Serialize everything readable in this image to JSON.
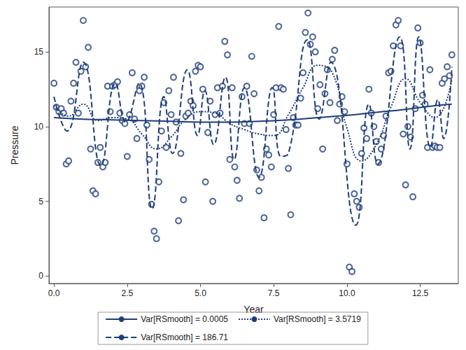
{
  "chart_data": {
    "type": "scatter",
    "x_label": "Year",
    "y_label": "Pressure",
    "xlim": [
      -0.17,
      13.8
    ],
    "ylim": [
      -0.5,
      18
    ],
    "xticks": [
      {
        "value": 0,
        "label": "0.0"
      },
      {
        "value": 2.5,
        "label": "2.5"
      },
      {
        "value": 5,
        "label": "5.0"
      },
      {
        "value": 7.5,
        "label": "7.5"
      },
      {
        "value": 10,
        "label": "10.0"
      },
      {
        "value": 12.5,
        "label": "12.5"
      }
    ],
    "yticks": [
      0,
      5,
      10,
      15
    ],
    "grid": false,
    "legend": "bottom",
    "series": [
      {
        "type": "scatter",
        "marker": "circle",
        "color": "#1f3d7a",
        "x": [
          0,
          0.08,
          0.17,
          0.25,
          0.33,
          0.42,
          0.5,
          0.58,
          0.67,
          0.75,
          0.83,
          0.92,
          1,
          1.08,
          1.17,
          1.25,
          1.33,
          1.42,
          1.5,
          1.58,
          1.67,
          1.75,
          1.83,
          1.92,
          2,
          2.08,
          2.17,
          2.25,
          2.33,
          2.42,
          2.5,
          2.58,
          2.67,
          2.75,
          2.83,
          2.92,
          3,
          3.08,
          3.17,
          3.25,
          3.33,
          3.42,
          3.5,
          3.58,
          3.67,
          3.75,
          3.83,
          3.92,
          4,
          4.08,
          4.17,
          4.25,
          4.33,
          4.42,
          4.5,
          4.58,
          4.67,
          4.75,
          4.83,
          4.92,
          5,
          5.08,
          5.17,
          5.25,
          5.33,
          5.42,
          5.5,
          5.58,
          5.67,
          5.75,
          5.83,
          5.92,
          6,
          6.08,
          6.17,
          6.25,
          6.33,
          6.42,
          6.5,
          6.58,
          6.67,
          6.75,
          6.83,
          6.92,
          7,
          7.08,
          7.17,
          7.25,
          7.33,
          7.42,
          7.5,
          7.58,
          7.67,
          7.75,
          7.83,
          7.92,
          8,
          8.08,
          8.17,
          8.25,
          8.33,
          8.42,
          8.5,
          8.58,
          8.67,
          8.75,
          8.83,
          8.92,
          9,
          9.08,
          9.17,
          9.25,
          9.33,
          9.42,
          9.5,
          9.58,
          9.67,
          9.75,
          9.83,
          9.92,
          10,
          10.08,
          10.17,
          10.25,
          10.33,
          10.42,
          10.5,
          10.58,
          10.67,
          10.75,
          10.83,
          10.92,
          11,
          11.08,
          11.17,
          11.25,
          11.33,
          11.42,
          11.5,
          11.58,
          11.67,
          11.75,
          11.83,
          11.92,
          12,
          12.08,
          12.17,
          12.25,
          12.33,
          12.42,
          12.5,
          12.58,
          12.67,
          12.75,
          12.83,
          12.92,
          13,
          13.08,
          13.17,
          13.25,
          13.33,
          13.42,
          13.5,
          13.58
        ],
        "values": [
          12.9,
          11.3,
          11.0,
          11.2,
          10.9,
          7.5,
          7.7,
          11.7,
          12.9,
          14.3,
          10.9,
          13.7,
          17.1,
          14.0,
          15.3,
          8.5,
          5.7,
          5.5,
          7.6,
          8.6,
          7.3,
          7.6,
          12.7,
          11.0,
          12.7,
          12.8,
          13.0,
          10.9,
          10.4,
          10.2,
          8.0,
          10.8,
          13.6,
          10.5,
          9.2,
          12.4,
          12.7,
          13.3,
          10.1,
          7.8,
          4.8,
          3.0,
          2.5,
          6.3,
          9.7,
          11.6,
          8.6,
          12.4,
          10.8,
          13.3,
          10.3,
          3.7,
          8.2,
          5.1,
          10.7,
          10.9,
          11.7,
          11.4,
          13.7,
          14.1,
          14.0,
          12.5,
          6.3,
          9.6,
          11.7,
          5.0,
          10.8,
          12.6,
          10.9,
          12.7,
          15.7,
          14.8,
          7.8,
          12.6,
          7.3,
          6.4,
          5.2,
          12.0,
          10.2,
          12.7,
          10.2,
          14.7,
          12.2,
          7.1,
          5.7,
          6.6,
          3.9,
          8.5,
          8.1,
          7.3,
          10.8,
          12.6,
          16.7,
          12.6,
          12.5,
          9.8,
          7.2,
          4.1,
          10.6,
          10.1,
          10.1,
          11.9,
          13.6,
          16.3,
          17.6,
          15.5,
          16.0,
          15.0,
          11.2,
          12.8,
          8.5,
          12.2,
          13.8,
          11.6,
          14.5,
          15.1,
          10.4,
          11.5,
          12.0,
          11.0,
          7.5,
          0.6,
          0.3,
          5.5,
          5.0,
          4.6,
          8.2,
          9.9,
          9.2,
          12.5,
          10.9,
          10.0,
          9.0,
          7.6,
          8.5,
          9.4,
          10.7,
          13.6,
          13.7,
          15.4,
          16.8,
          17.1,
          15.4,
          9.5,
          6.1,
          10.0,
          9.3,
          5.3,
          11.2,
          16.6,
          15.6,
          12.1,
          11.5,
          8.6,
          13.8,
          8.6,
          8.7,
          8.6,
          8.6,
          12.9,
          13.2,
          14.0,
          13.4,
          14.8
        ]
      },
      {
        "type": "line",
        "name": "Var[RSmooth] = 0.0005",
        "line_style": "solid",
        "color": "#1f3d7a",
        "x": [
          0,
          1,
          2,
          3,
          4,
          5,
          6,
          7,
          8,
          9,
          10,
          11,
          12,
          13,
          13.58
        ],
        "values": [
          10.6,
          10.5,
          10.45,
          10.4,
          10.35,
          10.3,
          10.3,
          10.35,
          10.45,
          10.6,
          10.75,
          10.95,
          11.15,
          11.4,
          11.5
        ]
      },
      {
        "type": "line",
        "name": "Var[RSmooth] = 3.5719",
        "line_style": "dotted",
        "color": "#1f3d7a",
        "x": [
          0,
          0.5,
          1,
          1.5,
          2,
          2.5,
          3,
          3.5,
          4,
          4.5,
          5,
          5.5,
          6,
          6.5,
          7,
          7.5,
          8,
          8.5,
          9,
          9.5,
          10,
          10.5,
          11,
          11.5,
          12,
          12.5,
          13,
          13.58
        ],
        "values": [
          11.4,
          10.7,
          11.5,
          10.4,
          10.6,
          10.5,
          9.5,
          8.5,
          9.3,
          10.5,
          11.0,
          10.9,
          10.2,
          9.8,
          9.5,
          9.4,
          10.8,
          12.6,
          14.1,
          13.6,
          9.9,
          7.7,
          8.8,
          11.3,
          13.2,
          11.6,
          10.6,
          13.2
        ]
      },
      {
        "type": "line",
        "name": "Var[RSmooth] = 186.71",
        "line_style": "dashed",
        "color": "#1f3d7a",
        "x": [
          0,
          0.45,
          1,
          1.6,
          2.1,
          2.45,
          2.9,
          3.35,
          3.75,
          4.05,
          4.55,
          4.9,
          5.15,
          5.45,
          5.85,
          6.15,
          6.5,
          7,
          7.45,
          7.75,
          8,
          8.65,
          9.05,
          9.45,
          10.3,
          10.75,
          11.05,
          11.8,
          12.15,
          12.45,
          12.85,
          13.1,
          13.3,
          13.58
        ],
        "values": [
          12.0,
          9.7,
          14.3,
          7.4,
          12.9,
          10.3,
          12.9,
          4.5,
          12.0,
          8.2,
          13.8,
          9.4,
          12.4,
          8.8,
          13.3,
          7.8,
          12.6,
          6.6,
          12.6,
          8.0,
          8.2,
          15.8,
          10.5,
          14.3,
          3.4,
          11.5,
          7.5,
          16.0,
          8.5,
          16.0,
          8.6,
          11.8,
          9.2,
          14.0
        ]
      }
    ]
  }
}
